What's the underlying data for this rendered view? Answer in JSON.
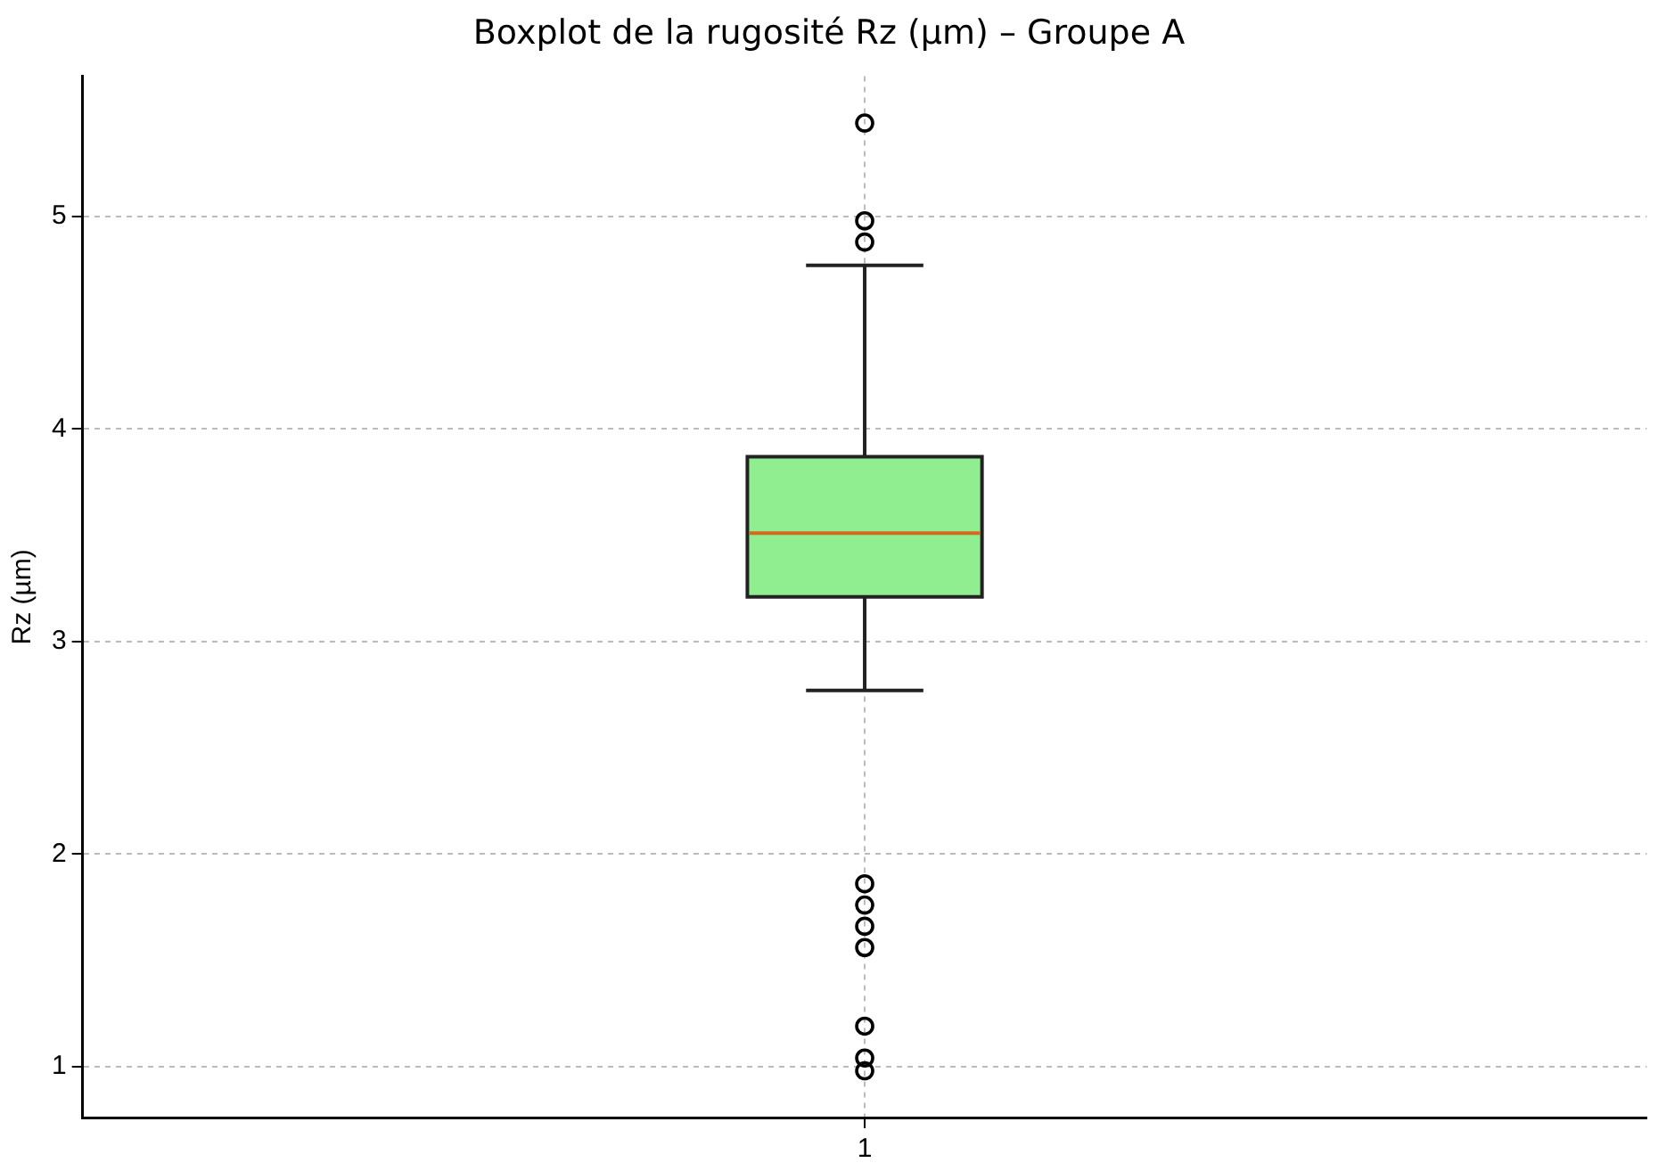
{
  "chart_data": {
    "type": "box",
    "title": "Boxplot de la rugosité Rz (µm) – Groupe A",
    "ylabel": "Rz (µm)",
    "categories": [
      "1"
    ],
    "boxes": [
      {
        "low": 2.77,
        "q1": 3.21,
        "median": 3.51,
        "q3": 3.87,
        "high": 4.77,
        "outliers": [
          5.44,
          4.98,
          4.88,
          1.86,
          1.76,
          1.66,
          1.56,
          1.19,
          1.04,
          0.98
        ]
      }
    ],
    "color": "#90ee90",
    "ylim": [
      0.76,
      5.66
    ],
    "yticks": [
      1,
      2,
      3,
      4,
      5
    ],
    "grid": true
  }
}
